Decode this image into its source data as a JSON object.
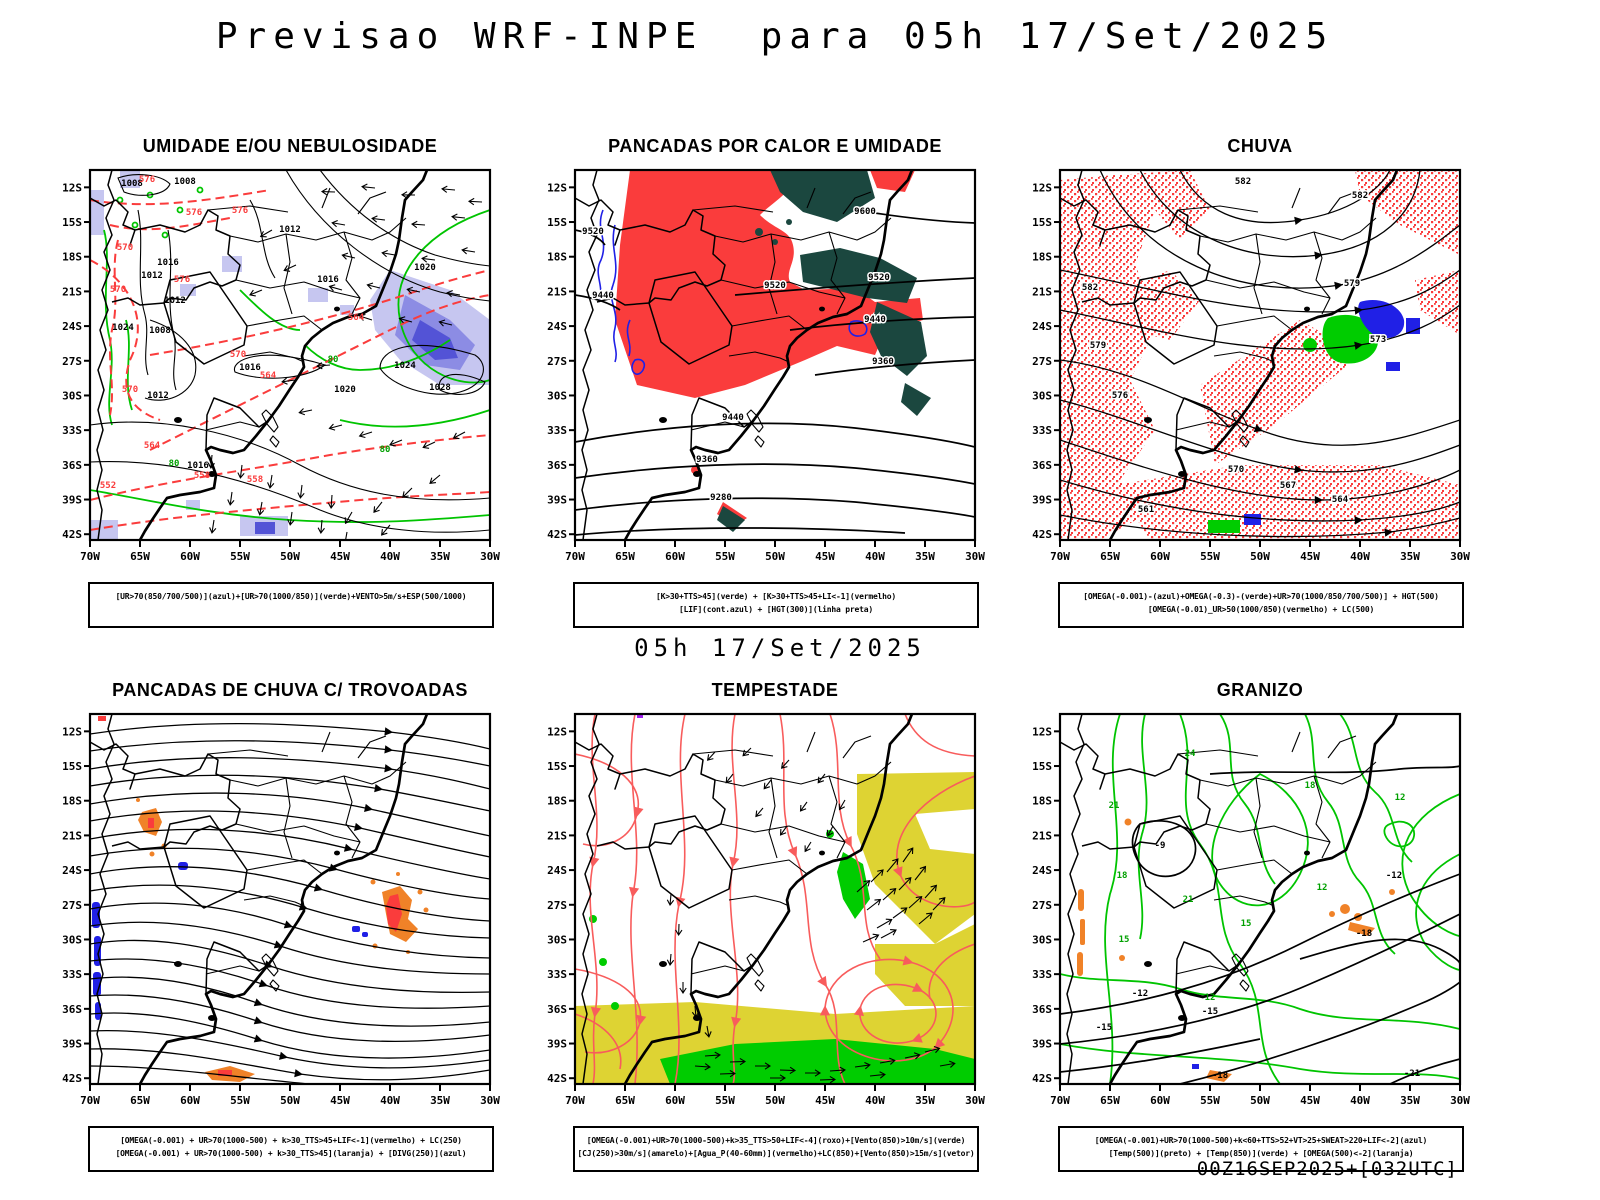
{
  "page": {
    "title": "Previsao WRF-INPE  para 05h 17/Set/2025",
    "subtitle": "05h 17/Set/2025",
    "footer": "00Z16SEP2025+[032UTC]"
  },
  "axis": {
    "lat_ticks": [
      "12S",
      "15S",
      "18S",
      "21S",
      "24S",
      "27S",
      "30S",
      "33S",
      "36S",
      "39S",
      "42S"
    ],
    "lon_ticks": [
      "70W",
      "65W",
      "60W",
      "55W",
      "50W",
      "45W",
      "40W",
      "35W",
      "30W"
    ]
  },
  "colors": {
    "red": "#fa3c3c",
    "dark_teal_green": "#1b473f",
    "green_contour": "#00c400",
    "green_fill": "#00cc00",
    "yellow": "#ded333",
    "orange": "#f08228",
    "blue": "#2020e6",
    "shade_light_blue": "#c6c6f0",
    "shade_mid_blue": "#8c8ce4",
    "shade_dark_blue": "#5353d6",
    "stream_red": "#f85c5c",
    "black": "#000000"
  },
  "panels": [
    {
      "id": "umidade",
      "title": "UMIDADE E/OU NEBULOSIDADE",
      "captions": [
        "[UR>70(850/700/500)](azul)+[UR>70(1000/850)](verde)+VENTO>5m/s+ESP(500/1000)"
      ],
      "labels": [
        [
          "1008",
          95,
          14,
          "k"
        ],
        [
          "1008",
          42,
          16,
          "k"
        ],
        [
          "1012",
          200,
          62,
          "k"
        ],
        [
          "1016",
          78,
          95,
          "k"
        ],
        [
          "1012",
          62,
          108,
          "k"
        ],
        [
          "1016",
          238,
          112,
          "k"
        ],
        [
          "1020",
          335,
          100,
          "k"
        ],
        [
          "1012",
          85,
          133,
          "k"
        ],
        [
          "1024",
          33,
          160,
          "k"
        ],
        [
          "1008",
          70,
          163,
          "k"
        ],
        [
          "1016",
          160,
          200,
          "k"
        ],
        [
          "1024",
          315,
          198,
          "k"
        ],
        [
          "1020",
          255,
          222,
          "k"
        ],
        [
          "1028",
          350,
          220,
          "k"
        ],
        [
          "1012",
          68,
          228,
          "k"
        ],
        [
          "1016",
          108,
          298,
          "k"
        ],
        [
          "576",
          57,
          12,
          "r"
        ],
        [
          "576",
          104,
          45,
          "r"
        ],
        [
          "576",
          150,
          43,
          "r"
        ],
        [
          "570",
          35,
          80,
          "r"
        ],
        [
          "576",
          92,
          112,
          "r"
        ],
        [
          "570",
          28,
          122,
          "r"
        ],
        [
          "570",
          148,
          187,
          "r"
        ],
        [
          "564",
          266,
          150,
          "r"
        ],
        [
          "564",
          62,
          278,
          "r"
        ],
        [
          "570",
          40,
          222,
          "r"
        ],
        [
          "564",
          178,
          208,
          "r"
        ],
        [
          "558",
          112,
          308,
          "r"
        ],
        [
          "552",
          18,
          318,
          "r"
        ],
        [
          "558",
          165,
          312,
          "r"
        ],
        [
          "80",
          243,
          192,
          "g"
        ],
        [
          "80",
          295,
          282,
          "g"
        ],
        [
          "80",
          84,
          296,
          "g"
        ]
      ]
    },
    {
      "id": "pancadas-calor",
      "title": "PANCADAS POR CALOR E UMIDADE",
      "captions": [
        "[K>30+TTS>45](verde) + [K>30+TTS>45+LI<-1](vermelho)",
        "[LIF](cont.azul) + [HGT(300)](linha preta)"
      ],
      "labels": [
        [
          "9600",
          290,
          44,
          "w"
        ],
        [
          "9520",
          18,
          64,
          "w"
        ],
        [
          "9520",
          200,
          118,
          "w"
        ],
        [
          "9520",
          304,
          110,
          "w"
        ],
        [
          "9440",
          28,
          128,
          "w"
        ],
        [
          "9440",
          300,
          152,
          "w"
        ],
        [
          "9440",
          158,
          250,
          "w"
        ],
        [
          "9360",
          308,
          194,
          "w"
        ],
        [
          "9360",
          132,
          292,
          "w"
        ],
        [
          "9280",
          146,
          330,
          "w"
        ]
      ]
    },
    {
      "id": "chuva",
      "title": "CHUVA",
      "captions": [
        "[OMEGA(-0.001)-(azul)+OMEGA(-0.3)-(verde)+UR>70(1000/850/700/500)] + HGT(500)",
        "[OMEGA(-0.01)_UR>50(1000/850)(vermelho) + LC(500)"
      ],
      "labels": [
        [
          "582",
          183,
          14,
          "w"
        ],
        [
          "582",
          300,
          28,
          "w"
        ],
        [
          "582",
          30,
          120,
          "w"
        ],
        [
          "579",
          292,
          116,
          "w"
        ],
        [
          "579",
          38,
          178,
          "w"
        ],
        [
          "576",
          60,
          228,
          "w"
        ],
        [
          "573",
          318,
          172,
          "w"
        ],
        [
          "570",
          176,
          302,
          "w"
        ],
        [
          "567",
          228,
          318,
          "w"
        ],
        [
          "564",
          280,
          332,
          "w"
        ],
        [
          "561",
          86,
          342,
          "w"
        ]
      ]
    },
    {
      "id": "trovoadas",
      "title": "PANCADAS DE CHUVA C/ TROVOADAS",
      "captions": [
        "[OMEGA(-0.001) + UR>70(1000-500) + k>30_TTS>45+LIF<-1](vermelho) + LC(250)",
        "[OMEGA(-0.001) + UR>70(1000-500) + k>30_TTS>45](laranja) + [DIVG(250)](azul)"
      ],
      "labels": []
    },
    {
      "id": "tempestade",
      "title": "TEMPESTADE",
      "captions": [
        "[OMEGA(-0.001)+UR>70(1000-500)+k>35_TTS>50+LIF<-4](roxo)+[Vento(850)>10m/s](verde)",
        "[CJ(250)>30m/s](amarelo)+[Agua_P(40-60mm)](vermelho)+LC(850)+[Vento(850)>15m/s](vetor)"
      ],
      "labels": []
    },
    {
      "id": "granizo",
      "title": "GRANIZO",
      "captions": [
        "[OMEGA(-0.001)+UR>70(1000-500)+k<60+TTS>52+VT>25+SWEAT>220+LIF<-2](azul)",
        "[Temp(500)](preto) + [Temp(850)](verde) + [OMEGA(500)<-2](laranja)"
      ],
      "labels": [
        [
          "24",
          130,
          42,
          "g"
        ],
        [
          "21",
          54,
          94,
          "g"
        ],
        [
          "21",
          128,
          188,
          "g"
        ],
        [
          "18",
          250,
          74,
          "g"
        ],
        [
          "18",
          62,
          164,
          "g"
        ],
        [
          "15",
          64,
          228,
          "g"
        ],
        [
          "15",
          186,
          212,
          "g"
        ],
        [
          "12",
          340,
          86,
          "g"
        ],
        [
          "12",
          262,
          176,
          "g"
        ],
        [
          "12",
          150,
          286,
          "g"
        ],
        [
          "-9",
          100,
          134,
          "k"
        ],
        [
          "-12",
          334,
          164,
          "k"
        ],
        [
          "-12",
          80,
          282,
          "k"
        ],
        [
          "-15",
          150,
          300,
          "k"
        ],
        [
          "-15",
          44,
          316,
          "k"
        ],
        [
          "-18",
          160,
          364,
          "k"
        ],
        [
          "-18",
          304,
          222,
          "k"
        ],
        [
          "-21",
          352,
          362,
          "k"
        ]
      ]
    }
  ]
}
